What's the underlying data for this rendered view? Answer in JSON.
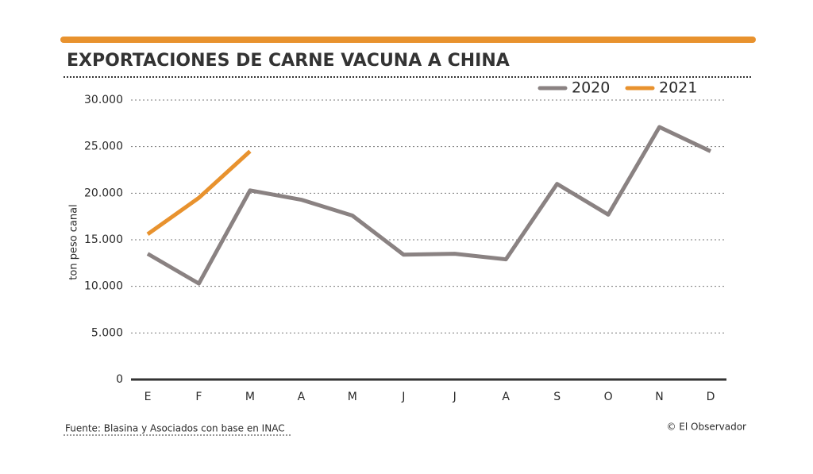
{
  "chart_data": {
    "type": "line",
    "title": "EXPORTACIONES DE CARNE VACUNA A CHINA",
    "y_label": "ton peso canal",
    "source": "Fuente: Blasina y Asociados con base en INAC",
    "credit": "© El Observador",
    "categories": [
      "E",
      "F",
      "M",
      "A",
      "M",
      "J",
      "J",
      "A",
      "S",
      "O",
      "N",
      "D"
    ],
    "series": [
      {
        "name": "2020",
        "color": "#8a8282",
        "values": [
          13500,
          10300,
          20300,
          19300,
          17600,
          13400,
          13500,
          12900,
          21000,
          17700,
          27100,
          24500
        ]
      },
      {
        "name": "2021",
        "color": "#e8922e",
        "values": [
          15600,
          19500,
          24500,
          null,
          null,
          null,
          null,
          null,
          null,
          null,
          null,
          null
        ]
      }
    ],
    "ylim": [
      0,
      30000
    ],
    "yticks": [
      0,
      {
        "value": 5000,
        "label": "5.000"
      },
      {
        "value": 10000,
        "label": "10.000"
      },
      {
        "value": 15000,
        "label": "15.000"
      },
      {
        "value": 20000,
        "label": "20.000"
      },
      {
        "value": 25000,
        "label": "25.000"
      },
      {
        "value": 30000,
        "label": "30.000"
      }
    ],
    "grid": true,
    "legend": "top-right"
  }
}
